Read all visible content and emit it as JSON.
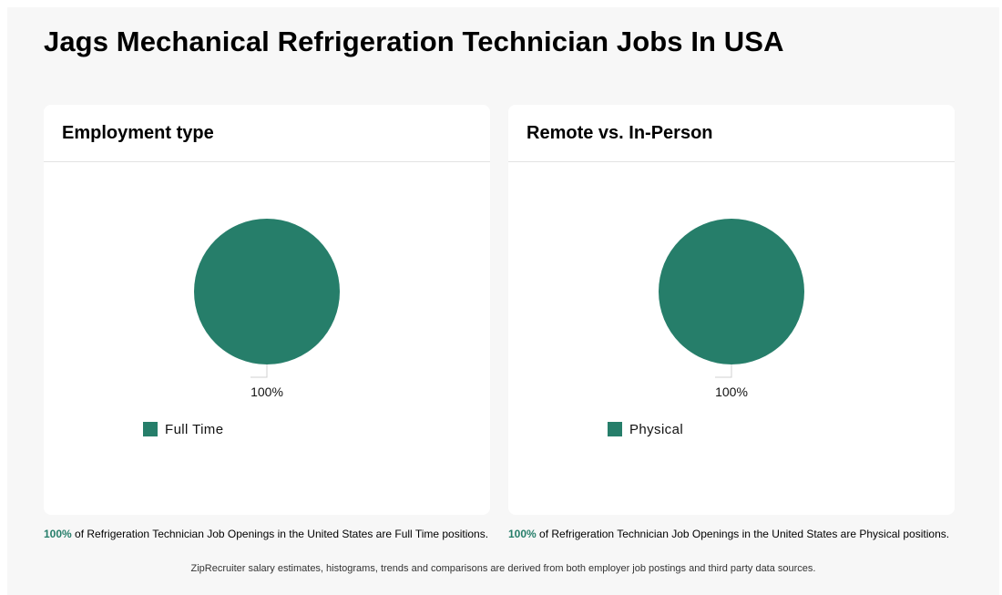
{
  "page": {
    "title": "Jags Mechanical Refrigeration Technician Jobs In USA",
    "footer": "ZipRecruiter salary estimates, histograms, trends and comparisons are derived from both employer job postings and third party data sources."
  },
  "colors": {
    "accent": "#267e6a"
  },
  "chart_data": [
    {
      "type": "pie",
      "title": "Employment type",
      "categories": [
        "Full Time"
      ],
      "values": [
        100
      ],
      "data_labels": [
        "100%"
      ],
      "legend": "bottom-left",
      "caption": {
        "pct": "100%",
        "text": " of Refrigeration Technician Job Openings in the United States are Full Time positions."
      }
    },
    {
      "type": "pie",
      "title": "Remote vs. In-Person",
      "categories": [
        "Physical"
      ],
      "values": [
        100
      ],
      "data_labels": [
        "100%"
      ],
      "legend": "bottom-left",
      "caption": {
        "pct": "100%",
        "text": " of Refrigeration Technician Job Openings in the United States are Physical positions."
      }
    }
  ]
}
